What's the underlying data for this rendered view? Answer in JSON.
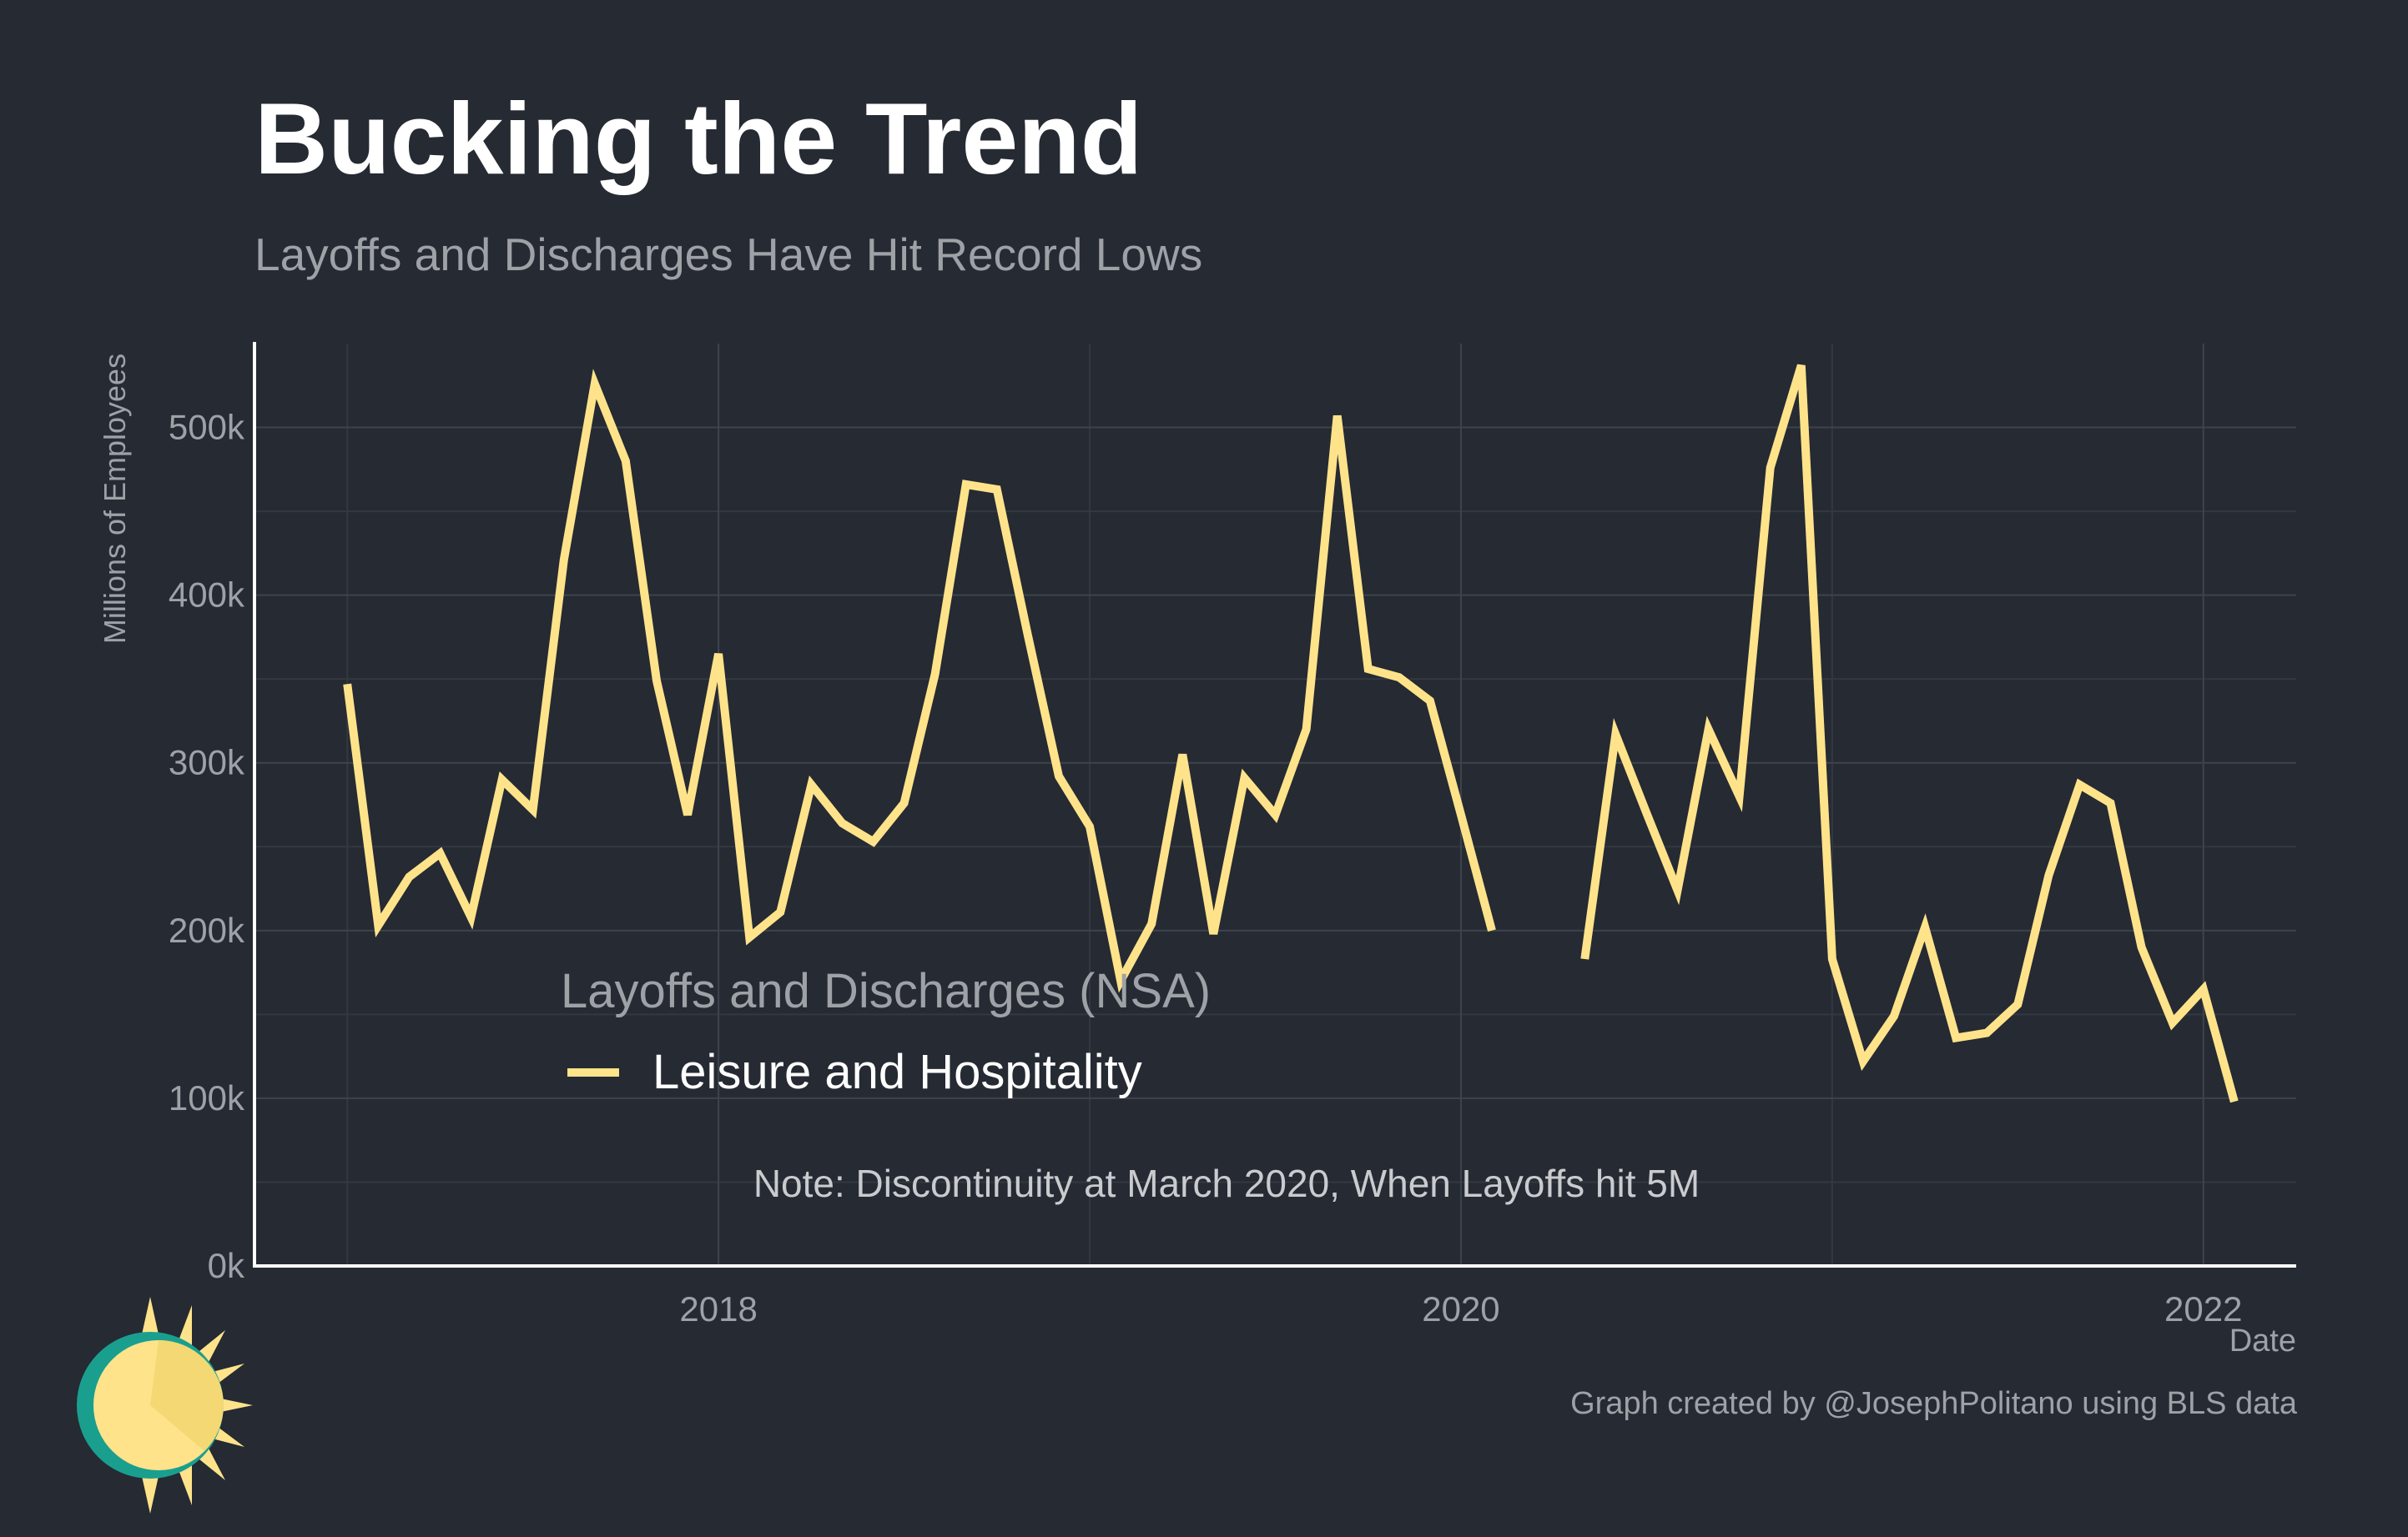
{
  "header": {
    "title": "Bucking the Trend",
    "subtitle": "Layoffs and Discharges Have Hit Record Lows"
  },
  "footer": {
    "credit": "Graph created by @JosephPolitano using BLS data"
  },
  "logo": {
    "icon": "sun-logo-icon"
  },
  "colors": {
    "background": "#252a33",
    "line": "#ffe38a",
    "grid": "#3e434c",
    "axis_text": "#9ea1a6",
    "title": "#ffffff"
  },
  "chart_data": {
    "type": "line",
    "title": "Bucking the Trend",
    "subtitle": "Layoffs and Discharges Have Hit Record Lows",
    "xlabel": "Date",
    "ylabel": "Millions of Employees",
    "x_ticks": [
      "2018",
      "2020",
      "2022"
    ],
    "y_ticks": [
      "0k",
      "100k",
      "200k",
      "300k",
      "400k",
      "500k"
    ],
    "ylim": [
      0,
      550000
    ],
    "xlim": [
      "2016-10",
      "2022-04"
    ],
    "grid": true,
    "legend": {
      "title": "Layoffs and Discharges (NSA)",
      "position": "inside-bottom-left"
    },
    "annotation": "Note: Discontinuity at March 2020, When Layoffs hit 5M",
    "series": [
      {
        "name": "Leisure and Hospitality",
        "color": "#ffe38a",
        "points": [
          [
            "2017-01",
            347000
          ],
          [
            "2017-02",
            203000
          ],
          [
            "2017-03",
            232000
          ],
          [
            "2017-04",
            246000
          ],
          [
            "2017-05",
            208000
          ],
          [
            "2017-06",
            290000
          ],
          [
            "2017-07",
            272000
          ],
          [
            "2017-08",
            421000
          ],
          [
            "2017-09",
            526000
          ],
          [
            "2017-10",
            480000
          ],
          [
            "2017-11",
            349000
          ],
          [
            "2017-12",
            269000
          ],
          [
            "2018-01",
            365000
          ],
          [
            "2018-02",
            196000
          ],
          [
            "2018-03",
            211000
          ],
          [
            "2018-04",
            287000
          ],
          [
            "2018-05",
            264000
          ],
          [
            "2018-06",
            253000
          ],
          [
            "2018-07",
            276000
          ],
          [
            "2018-08",
            353000
          ],
          [
            "2018-09",
            466000
          ],
          [
            "2018-10",
            463000
          ],
          [
            "2018-11",
            376000
          ],
          [
            "2018-12",
            292000
          ],
          [
            "2019-01",
            262000
          ],
          [
            "2019-02",
            170000
          ],
          [
            "2019-03",
            204000
          ],
          [
            "2019-04",
            305000
          ],
          [
            "2019-05",
            198000
          ],
          [
            "2019-06",
            291000
          ],
          [
            "2019-07",
            269000
          ],
          [
            "2019-08",
            320000
          ],
          [
            "2019-09",
            507000
          ],
          [
            "2019-10",
            356000
          ],
          [
            "2019-11",
            351000
          ],
          [
            "2019-12",
            337000
          ],
          [
            "2020-01",
            269000
          ],
          [
            "2020-02",
            200000
          ],
          [
            "2020-03",
            null
          ],
          [
            "2020-04",
            null
          ],
          [
            "2020-05",
            183000
          ],
          [
            "2020-06",
            317000
          ],
          [
            "2020-07",
            270000
          ],
          [
            "2020-08",
            224000
          ],
          [
            "2020-09",
            320000
          ],
          [
            "2020-10",
            280000
          ],
          [
            "2020-11",
            476000
          ],
          [
            "2020-12",
            537000
          ],
          [
            "2021-01",
            183000
          ],
          [
            "2021-02",
            122000
          ],
          [
            "2021-03",
            149000
          ],
          [
            "2021-04",
            202000
          ],
          [
            "2021-05",
            136000
          ],
          [
            "2021-06",
            139000
          ],
          [
            "2021-07",
            156000
          ],
          [
            "2021-08",
            233000
          ],
          [
            "2021-09",
            287000
          ],
          [
            "2021-10",
            276000
          ],
          [
            "2021-11",
            190000
          ],
          [
            "2021-12",
            145000
          ],
          [
            "2022-01",
            165000
          ],
          [
            "2022-02",
            98000
          ]
        ]
      }
    ]
  }
}
